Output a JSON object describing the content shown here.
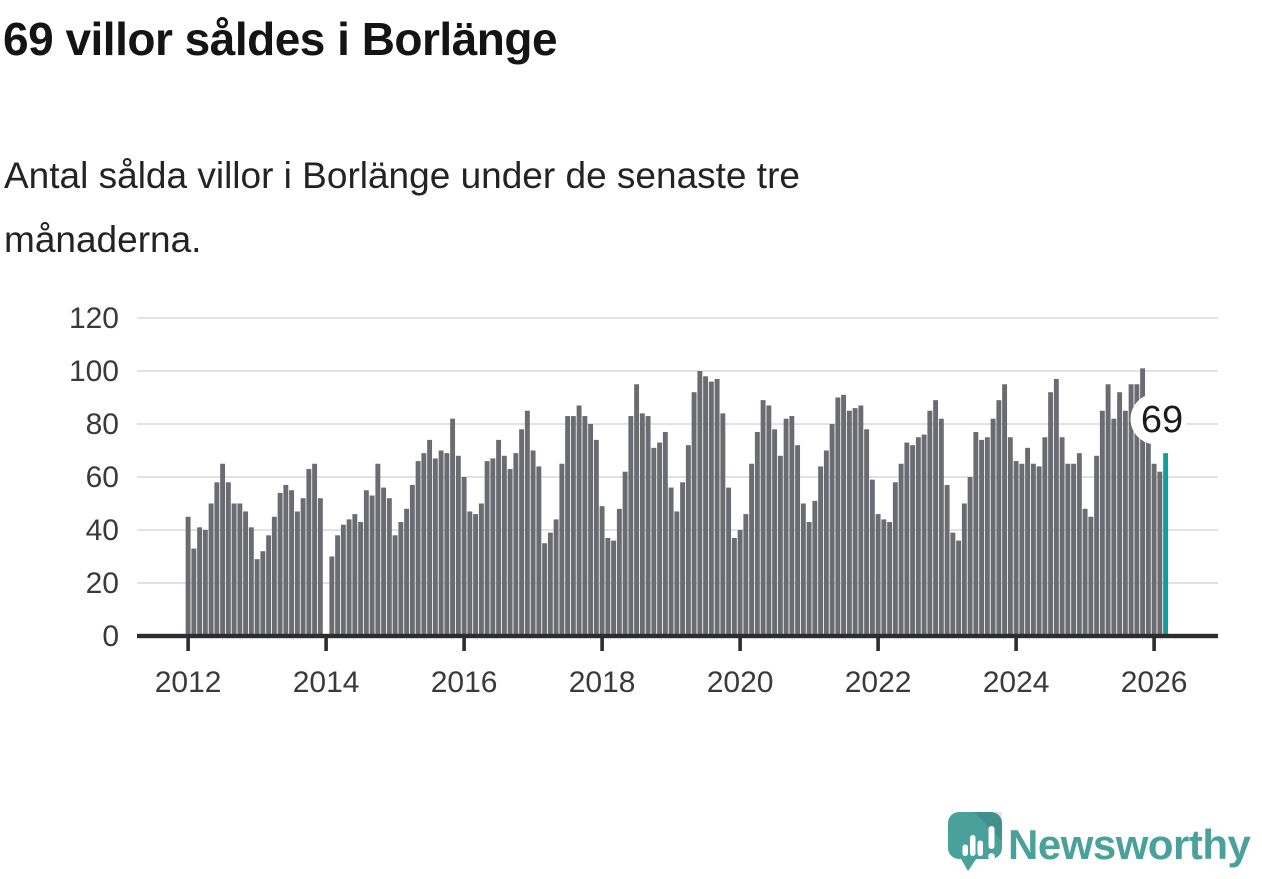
{
  "header": {
    "title": "69 villor såldes i Borlänge",
    "subtitle_lines": [
      "Antal sålda villor i Borlänge under de senaste tre",
      "månaderna."
    ]
  },
  "chart_data": {
    "type": "bar",
    "title": "69 villor såldes i Borlänge",
    "description": "Antal sålda villor i Borlänge under de senaste tre månaderna.",
    "frequency": "monthly",
    "x_start": "2012-01",
    "x_end": "2026-03",
    "x_tick_labels": [
      "2012",
      "2014",
      "2016",
      "2018",
      "2020",
      "2022",
      "2024",
      "2026"
    ],
    "y_ticks": [
      0,
      20,
      40,
      60,
      80,
      100,
      120
    ],
    "y_tick_labels": [
      "0",
      "20",
      "40",
      "60",
      "80",
      "100",
      "120"
    ],
    "ylim": [
      0,
      120
    ],
    "grid": "horizontal",
    "bar_color": "#6b6b72",
    "values": [
      45,
      33,
      41,
      40,
      50,
      58,
      65,
      58,
      50,
      50,
      47,
      41,
      29,
      32,
      38,
      45,
      54,
      57,
      55,
      47,
      52,
      63,
      65,
      52,
      null,
      30,
      38,
      42,
      44,
      46,
      43,
      55,
      53,
      65,
      56,
      52,
      38,
      43,
      48,
      57,
      66,
      69,
      74,
      67,
      70,
      69,
      82,
      68,
      60,
      47,
      46,
      50,
      66,
      67,
      74,
      68,
      63,
      69,
      78,
      85,
      70,
      64,
      35,
      39,
      44,
      65,
      83,
      83,
      87,
      83,
      80,
      74,
      49,
      37,
      36,
      48,
      62,
      83,
      95,
      84,
      83,
      71,
      73,
      77,
      56,
      47,
      58,
      72,
      92,
      100,
      98,
      96,
      97,
      84,
      56,
      37,
      40,
      46,
      65,
      77,
      89,
      87,
      78,
      68,
      82,
      83,
      72,
      50,
      43,
      51,
      64,
      70,
      80,
      90,
      91,
      85,
      86,
      87,
      78,
      59,
      46,
      44,
      43,
      58,
      65,
      73,
      72,
      75,
      76,
      85,
      89,
      82,
      57,
      39,
      36,
      50,
      60,
      77,
      74,
      75,
      82,
      89,
      95,
      75,
      66,
      65,
      71,
      65,
      64,
      75,
      92,
      97,
      75,
      65,
      65,
      69,
      48,
      45,
      68,
      85,
      95,
      82,
      92,
      85,
      95,
      95,
      101,
      90,
      65,
      62,
      69
    ],
    "highlight": {
      "label": "69",
      "value": 69,
      "color": "#0f9e9e"
    }
  },
  "footer": {
    "logo_icon": "newsworthy-speech-bubble-chart-icon",
    "logo_text": "Newsworthy",
    "logo_color": "#4aa19c"
  }
}
